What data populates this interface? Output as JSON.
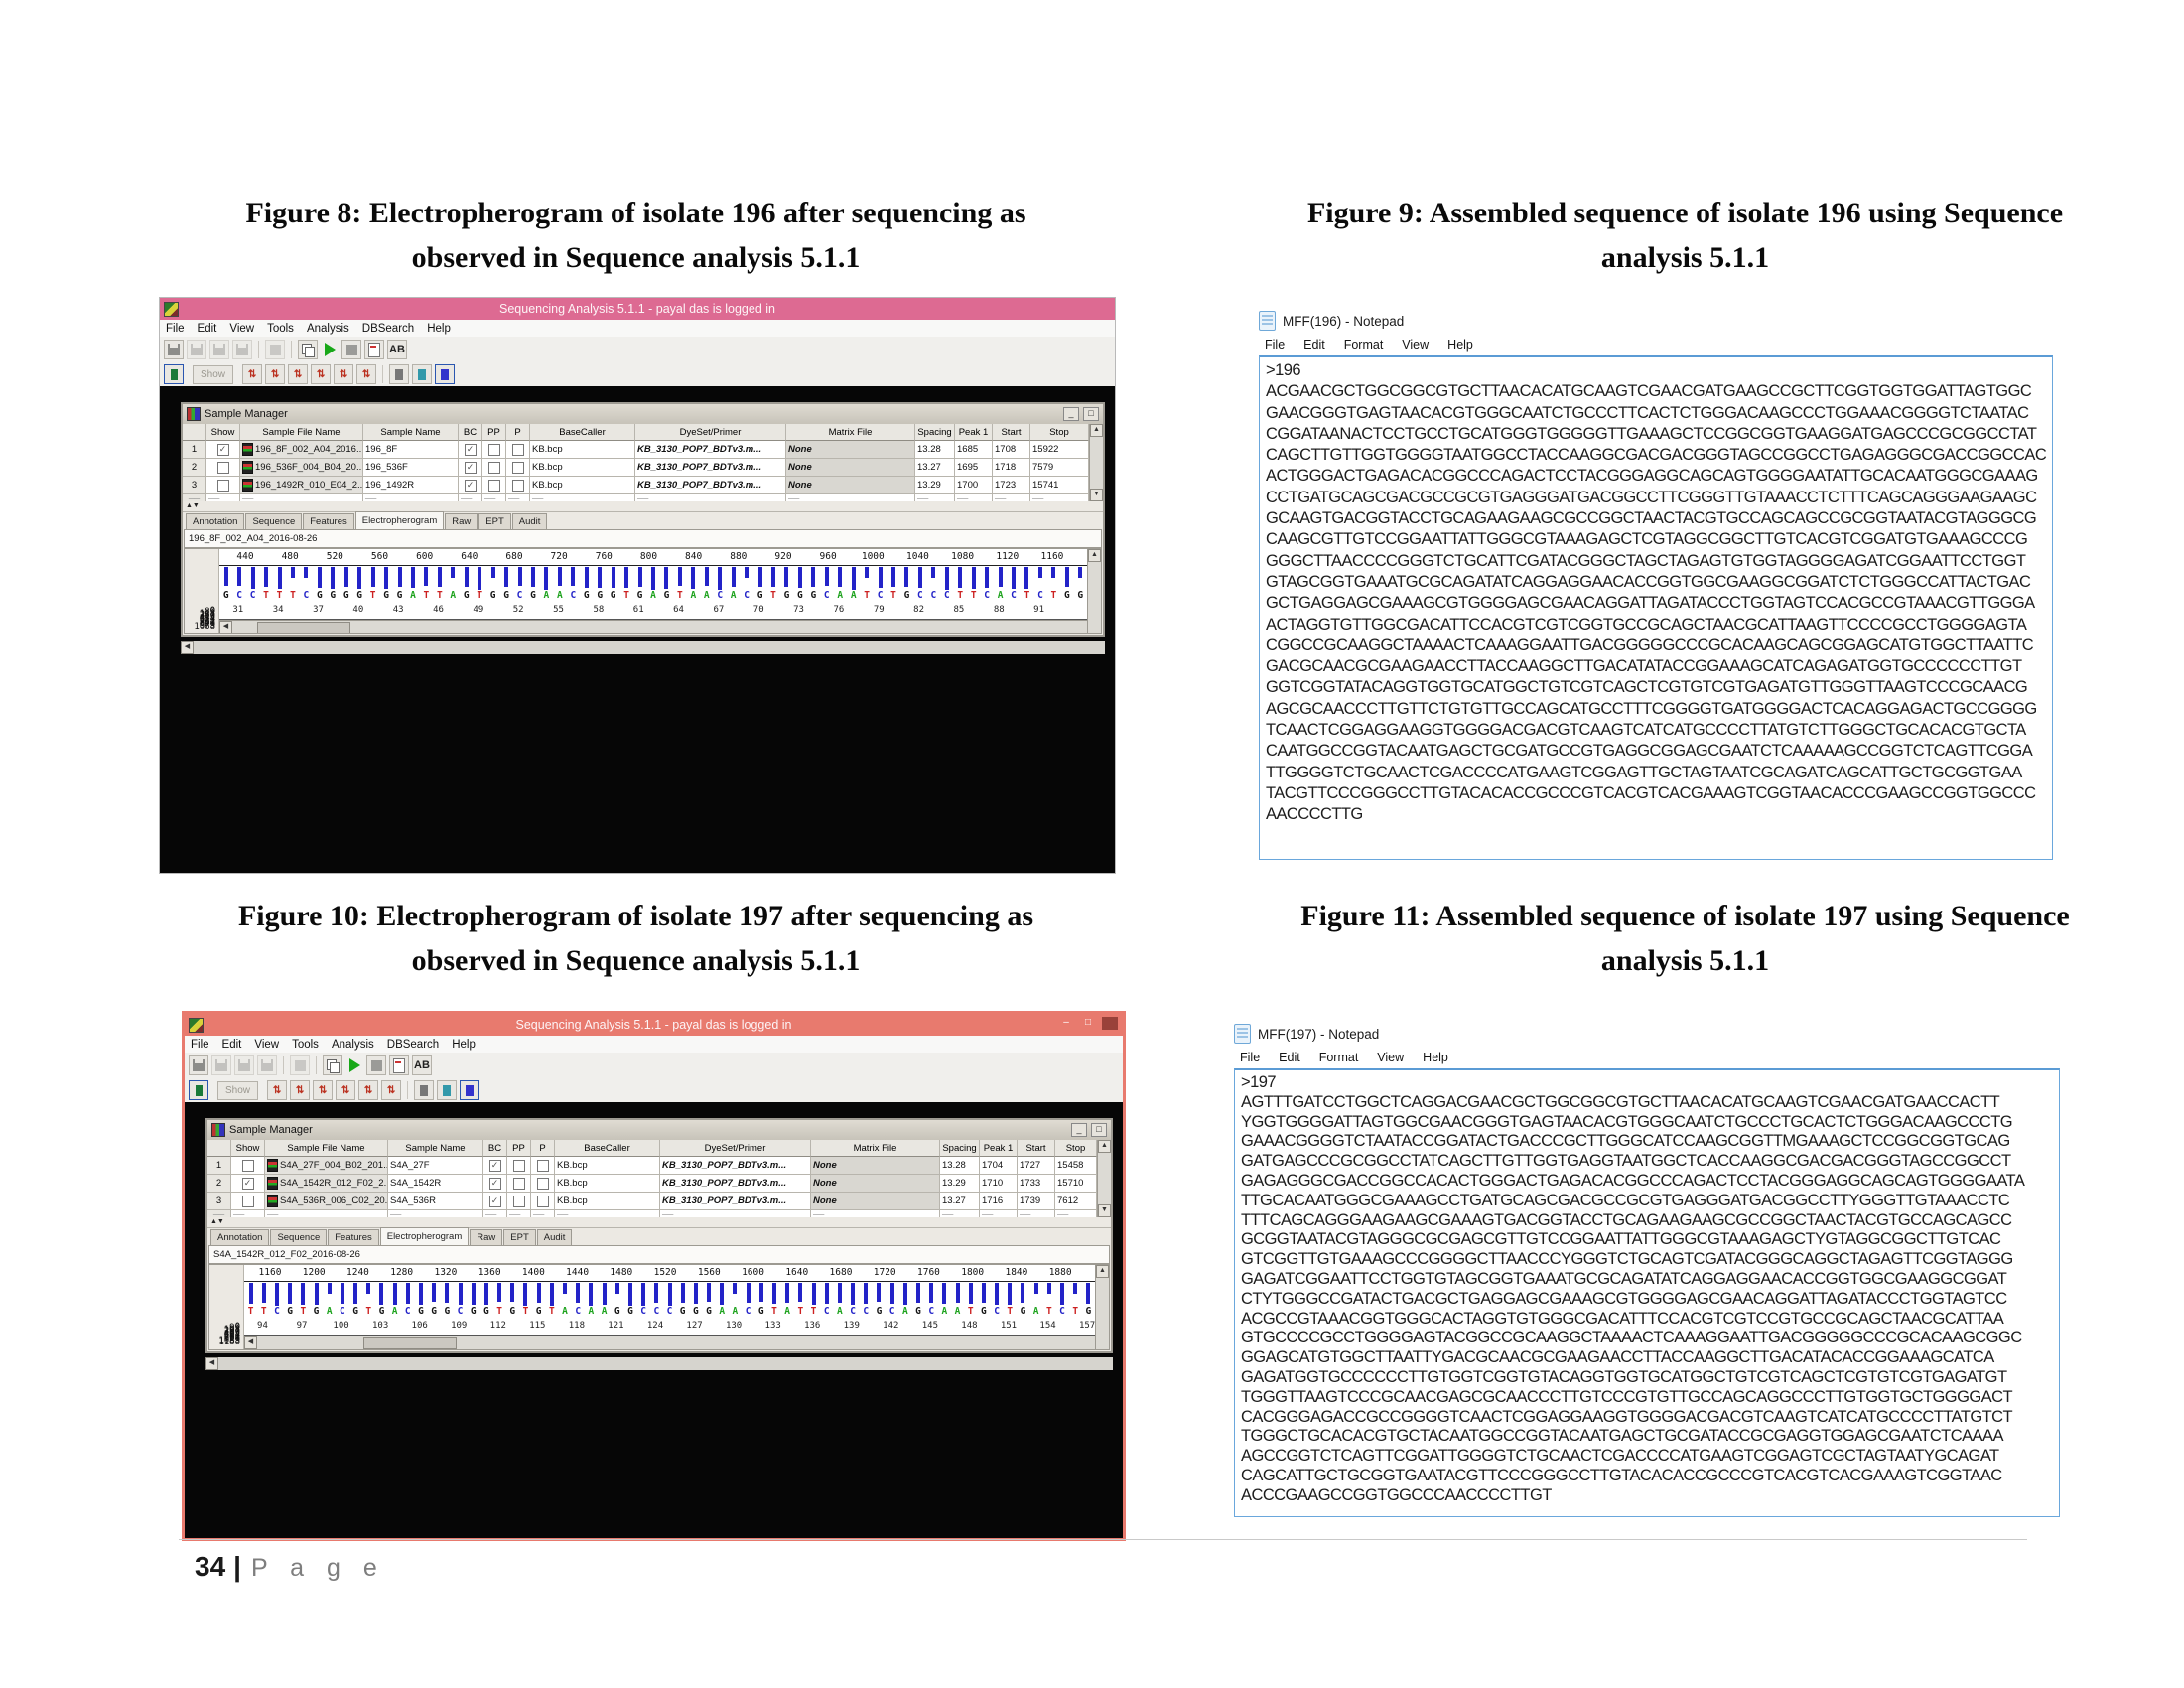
{
  "page": {
    "footer_number": "34",
    "footer_label": "P a g e"
  },
  "base_colors": {
    "A": "#1ea31e",
    "C": "#2323c8",
    "G": "#141414",
    "T": "#cc2020"
  },
  "figures": {
    "fig8": {
      "caption_l1": "Figure 8: Electropherogram of isolate 196 after sequencing as",
      "caption_l2": "observed in Sequence analysis 5.1.1"
    },
    "fig9": {
      "caption_l1": "Figure 9: Assembled sequence of isolate 196 using Sequence",
      "caption_l2": "analysis 5.1.1"
    },
    "fig10": {
      "caption_l1": "Figure 10: Electropherogram of isolate 197 after sequencing as",
      "caption_l2": "observed in Sequence analysis 5.1.1"
    },
    "fig11": {
      "caption_l1": "Figure 11: Assembled sequence of isolate 197 using Sequence",
      "caption_l2": "analysis 5.1.1"
    }
  },
  "seq_windows": [
    {
      "title": "Sequencing Analysis 5.1.1",
      "title_sep": "-",
      "title_suffix": "payal das is logged in",
      "titlebar_color": "#dd6a92",
      "window_controls": [],
      "menus": [
        "File",
        "Edit",
        "View",
        "Tools",
        "Analysis",
        "DBSearch",
        "Help"
      ],
      "toolbar1_icons": [
        "new-icon",
        "open-icon",
        "save-icon",
        "save-all-icon",
        "print-icon",
        "copy-icon",
        "start-analysis-icon",
        "stop-analysis-icon",
        "report-icon",
        "basecaller-ab-icon"
      ],
      "toolbar2_icons": [
        "split-view-icon",
        "show-button",
        "raw-trace-icon",
        "analyzed-trace-icon",
        "quality-a-icon",
        "quality-c-icon",
        "quality-g-icon",
        "quality-t-icon",
        "annotation-view-icon",
        "sequence-view-icon",
        "electropherogram-view-icon"
      ],
      "ab_label": "AB",
      "show_label": "Show",
      "sample_manager": {
        "title": "Sample Manager",
        "columns": [
          "",
          "Show",
          "Sample File Name",
          "Sample Name",
          "BC",
          "PP",
          "P",
          "BaseCaller",
          "DyeSet/Primer",
          "Matrix File",
          "Spacing",
          "Peak 1",
          "Start",
          "Stop"
        ],
        "rows": [
          {
            "num": "1",
            "show": true,
            "file": "196_8F_002_A04_2016...",
            "name": "196_8F",
            "bc": true,
            "pp": false,
            "p": false,
            "basecaller": "KB.bcp",
            "dyeset": "KB_3130_POP7_BDTv3.m...",
            "matrix": "None",
            "spacing": "13.28",
            "peak1": "1685",
            "start": "1708",
            "stop": "15922"
          },
          {
            "num": "2",
            "show": false,
            "file": "196_536F_004_B04_20...",
            "name": "196_536F",
            "bc": true,
            "pp": false,
            "p": false,
            "basecaller": "KB.bcp",
            "dyeset": "KB_3130_POP7_BDTv3.m...",
            "matrix": "None",
            "spacing": "13.27",
            "peak1": "1695",
            "start": "1718",
            "stop": "7579"
          },
          {
            "num": "3",
            "show": false,
            "file": "196_1492R_010_E04_2...",
            "name": "196_1492R",
            "bc": true,
            "pp": false,
            "p": false,
            "basecaller": "KB.bcp",
            "dyeset": "KB_3130_POP7_BDTv3.m...",
            "matrix": "None",
            "spacing": "13.29",
            "peak1": "1700",
            "start": "1723",
            "stop": "15741"
          }
        ]
      },
      "tabs": [
        "Annotation",
        "Sequence",
        "Features",
        "Electropherogram",
        "Raw",
        "EPT",
        "Audit"
      ],
      "active_tab": "Electropherogram",
      "file_label": "196_8F_002_A04_2016-08-26",
      "chromatogram": {
        "scale_ticks": [
          440,
          480,
          520,
          560,
          600,
          640,
          680,
          720,
          760,
          800,
          840,
          880,
          920,
          960,
          1000,
          1040,
          1080,
          1120,
          1160
        ],
        "sequence": "GCCTTTCGGGGTGGATTAGTGGCGAACGGGTGAGTAACACGTGGGCAATCTGCCCTTCACTCTGG",
        "position_ticks": [
          31,
          34,
          37,
          40,
          43,
          46,
          49,
          52,
          55,
          58,
          61,
          64,
          67,
          70,
          73,
          76,
          79,
          82,
          85,
          88,
          91
        ],
        "y_ticks": [
          1068,
          979,
          890,
          801,
          712,
          623,
          534,
          445,
          356,
          267,
          178,
          89,
          0
        ],
        "seed": 7
      }
    },
    {
      "title": "Sequencing Analysis 5.1.1",
      "title_sep": "-",
      "title_suffix": "payal das is logged in",
      "titlebar_color": "#e87a6e",
      "window_controls": [
        "–",
        "□",
        "■"
      ],
      "menus": [
        "File",
        "Edit",
        "View",
        "Tools",
        "Analysis",
        "DBSearch",
        "Help"
      ],
      "toolbar1_icons": [
        "new-icon",
        "open-icon",
        "save-icon",
        "save-all-icon",
        "print-icon",
        "copy-icon",
        "start-analysis-icon",
        "stop-analysis-icon",
        "report-icon",
        "basecaller-ab-icon"
      ],
      "toolbar2_icons": [
        "split-view-icon",
        "show-button",
        "raw-trace-icon",
        "analyzed-trace-icon",
        "quality-a-icon",
        "quality-c-icon",
        "quality-g-icon",
        "quality-t-icon",
        "annotation-view-icon",
        "sequence-view-icon",
        "electropherogram-view-icon"
      ],
      "ab_label": "AB",
      "show_label": "Show",
      "sample_manager": {
        "title": "Sample Manager",
        "columns": [
          "",
          "Show",
          "Sample File Name",
          "Sample Name",
          "BC",
          "PP",
          "P",
          "BaseCaller",
          "DyeSet/Primer",
          "Matrix File",
          "Spacing",
          "Peak 1",
          "Start",
          "Stop"
        ],
        "rows": [
          {
            "num": "1",
            "show": false,
            "file": "S4A_27F_004_B02_201...",
            "name": "S4A_27F",
            "bc": true,
            "pp": false,
            "p": false,
            "basecaller": "KB.bcp",
            "dyeset": "KB_3130_POP7_BDTv3.m...",
            "matrix": "None",
            "spacing": "13.28",
            "peak1": "1704",
            "start": "1727",
            "stop": "15458"
          },
          {
            "num": "2",
            "show": true,
            "file": "S4A_1542R_012_F02_2...",
            "name": "S4A_1542R",
            "bc": true,
            "pp": false,
            "p": false,
            "basecaller": "KB.bcp",
            "dyeset": "KB_3130_POP7_BDTv3.m...",
            "matrix": "None",
            "spacing": "13.29",
            "peak1": "1710",
            "start": "1733",
            "stop": "15710"
          },
          {
            "num": "3",
            "show": false,
            "file": "S4A_536R_006_C02_20...",
            "name": "S4A_536R",
            "bc": true,
            "pp": false,
            "p": false,
            "basecaller": "KB.bcp",
            "dyeset": "KB_3130_POP7_BDTv3.m...",
            "matrix": "None",
            "spacing": "13.27",
            "peak1": "1716",
            "start": "1739",
            "stop": "7612"
          }
        ]
      },
      "tabs": [
        "Annotation",
        "Sequence",
        "Features",
        "Electropherogram",
        "Raw",
        "EPT",
        "Audit"
      ],
      "active_tab": "Electropherogram",
      "file_label": "S4A_1542R_012_F02_2016-08-26",
      "chromatogram": {
        "scale_ticks": [
          1160,
          1200,
          1240,
          1280,
          1320,
          1360,
          1400,
          1440,
          1480,
          1520,
          1560,
          1600,
          1640,
          1680,
          1720,
          1760,
          1800,
          1840,
          1880
        ],
        "sequence": "TTCGTGACGTGACGGGCGGTGTGTACAAGGCCCGGGAACGTATTCACCGCAGCAATGCTGATCTG",
        "position_ticks": [
          94,
          97,
          100,
          103,
          106,
          109,
          112,
          115,
          118,
          121,
          124,
          127,
          130,
          133,
          136,
          139,
          142,
          145,
          148,
          151,
          154,
          157
        ],
        "y_ticks": [
          1188,
          1089,
          990,
          891,
          792,
          693,
          594,
          495,
          396,
          297,
          198,
          99,
          0
        ],
        "seed": 13
      }
    }
  ],
  "notepads": [
    {
      "title": "MFF(196) - Notepad",
      "menus": [
        "File",
        "Edit",
        "Format",
        "View",
        "Help"
      ],
      "header": ">196",
      "lines": [
        "ACGAACGCTGGCGGCGTGCTTAACACATGCAAGTCGAACGATGAAGCCGCTTCGGTGGTGGATTAGTGGC",
        "GAACGGGTGAGTAACACGTGGGCAATCTGCCCTTCACTCTGGGACAAGCCCTGGAAACGGGGTCTAATAC",
        "CGGATAANACTCCTGCCTGCATGGGTGGGGGTTGAAAGCTCCGGCGGTGAAGGATGAGCCCGCGGCCTAT",
        "CAGCTTGTTGGTGGGGTAATGGCCTACCAAGGCGACGACGGGTAGCCGGCCTGAGAGGGCGACCGGCCAC",
        "ACTGGGACTGAGACACGGCCCAGACTCCTACGGGAGGCAGCAGTGGGGAATATTGCACAATGGGCGAAAG",
        "CCTGATGCAGCGACGCCGCGTGAGGGATGACGGCCTTCGGGTTGTAAACCTCTTTCAGCAGGGAAGAAGC",
        "GCAAGTGACGGTACCTGCAGAAGAAGCGCCGGCTAACTACGTGCCAGCAGCCGCGGTAATACGTAGGGCG",
        "CAAGCGTTGTCCGGAATTATTGGGCGTAAAGAGCTCGTAGGCGGCTTGTCACGTCGGATGTGAAAGCCCG",
        "GGGCTTAACCCCGGGTCTGCATTCGATACGGGCTAGCTAGAGTGTGGTAGGGGAGATCGGAATTCCTGGT",
        "GTAGCGGTGAAATGCGCAGATATCAGGAGGAACACCGGTGGCGAAGGCGGATCTCTGGGCCATTACTGAC",
        "GCTGAGGAGCGAAAGCGTGGGGAGCGAACAGGATTAGATACCCTGGTAGTCCACGCCGTAAACGTTGGGA",
        "ACTAGGTGTTGGCGACATTCCACGTCGTCGGTGCCGCAGCTAACGCATTAAGTTCCCCGCCTGGGGAGTA",
        "CGGCCGCAAGGCTAAAACTCAAAGGAATTGACGGGGGCCCGCACAAGCAGCGGAGCATGTGGCTTAATTC",
        "GACGCAACGCGAAGAACCTTACCAAGGCTTGACATATACCGGAAAGCATCAGAGATGGTGCCCCCCTTGT",
        "GGTCGGTATACAGGTGGTGCATGGCTGTCGTCAGCTCGTGTCGTGAGATGTTGGGTTAAGTCCCGCAACG",
        "AGCGCAACCCTTGTTCTGTGTTGCCAGCATGCCTTTCGGGGTGATGGGGACTCACAGGAGACTGCCGGGG",
        "TCAACTCGGAGGAAGGTGGGGACGACGTCAAGTCATCATGCCCCTTATGTCTTGGGCTGCACACGTGCTA",
        "CAATGGCCGGTACAATGAGCTGCGATGCCGTGAGGCGGAGCGAATCTCAAAAAGCCGGTCTCAGTTCGGA",
        "TTGGGGTCTGCAACTCGACCCCATGAAGTCGGAGTTGCTAGTAATCGCAGATCAGCATTGCTGCGGTGAA",
        "TACGTTCCCGGGCCTTGTACACACCGCCCGTCACGTCACGAAAGTCGGTAACACCCGAAGCCGGTGGCCC",
        "AACCCCTTG"
      ]
    },
    {
      "title": "MFF(197) - Notepad",
      "menus": [
        "File",
        "Edit",
        "Format",
        "View",
        "Help"
      ],
      "header": ">197",
      "lines": [
        "AGTTTGATCCTGGCTCAGGACGAACGCTGGCGGCGTGCTTAACACATGCAAGTCGAACGATGAACCACTT",
        "YGGTGGGGATTAGTGGCGAACGGGTGAGTAACACGTGGGCAATCTGCCCTGCACTCTGGGACAAGCCCTG",
        "GAAACGGGGTCTAATACCGGATACTGACCCGCTTGGGCATCCAAGCGGTTMGAAAGCTCCGGCGGTGCAG",
        "GATGAGCCCGCGGCCTATCAGCTTGTTGGTGAGGTAATGGCTCACCAAGGCGACGACGGGTAGCCGGCCT",
        "GAGAGGGCGACCGGCCACACTGGGACTGAGACACGGCCCAGACTCCTACGGGAGGCAGCAGTGGGGAATA",
        "TTGCACAATGGGCGAAAGCCTGATGCAGCGACGCCGCGTGAGGGATGACGGCCTTYGGGTTGTAAACCTC",
        "TTTCAGCAGGGAAGAAGCGAAAGTGACGGTACCTGCAGAAGAAGCGCCGGCTAACTACGTGCCAGCAGCC",
        "GCGGTAATACGTAGGGCGCGAGCGTTGTCCGGAATTATTGGGCGTAAAGAGCTYGTAGGCGGCTTGTCAC",
        "GTCGGTTGTGAAAGCCCGGGGCTTAACCCYGGGTCTGCAGTCGATACGGGCAGGCTAGAGTTCGGTAGGG",
        "GAGATCGGAATTCCTGGTGTAGCGGTGAAATGCGCAGATATCAGGAGGAACACCGGTGGCGAAGGCGGAT",
        "CTYTGGGCCGATACTGACGCTGAGGAGCGAAAGCGTGGGGAGCGAACAGGATTAGATACCCTGGTAGTCC",
        "ACGCCGTAAACGGTGGGCACTAGGTGTGGGCGACATTTCCACGTCGTCCGTGCCGCAGCTAACGCATTAA",
        "GTGCCCCGCCTGGGGAGTACGGCCGCAAGGCTAAAACTCAAAGGAATTGACGGGGGCCCGCACAAGCGGC",
        "GGAGCATGTGGCTTAATTYGACGCAACGCGAAGAACCTTACCAAGGCTTGACATACACCGGAAAGCATCA",
        "GAGATGGTGCCCCCCTTGTGGTCGGTGTACAGGTGGTGCATGGCTGTCGTCAGCTCGTGTCGTGAGATGT",
        "TGGGTTAAGTCCCGCAACGAGCGCAACCCTTGTCCCGTGTTGCCAGCAGGCCCTTGTGGTGCTGGGGACT",
        "CACGGGAGACCGCCGGGGTCAACTCGGAGGAAGGTGGGGACGACGTCAAGTCATCATGCCCCTTATGTCT",
        "TGGGCTGCACACGTGCTACAATGGCCGGTACAATGAGCTGCGATACCGCGAGGTGGAGCGAATCTCAAAA",
        "AGCCGGTCTCAGTTCGGATTGGGGTCTGCAACTCGACCCCATGAAGTCGGAGTCGCTAGTAATYGCAGAT",
        "CAGCATTGCTGCGGTGAATACGTTCCCGGGCCTTGTACACACCGCCCGTCACGTCACGAAAGTCGGTAAC",
        "ACCCGAAGCCGGTGGCCCAACCCCTTGT"
      ]
    }
  ]
}
